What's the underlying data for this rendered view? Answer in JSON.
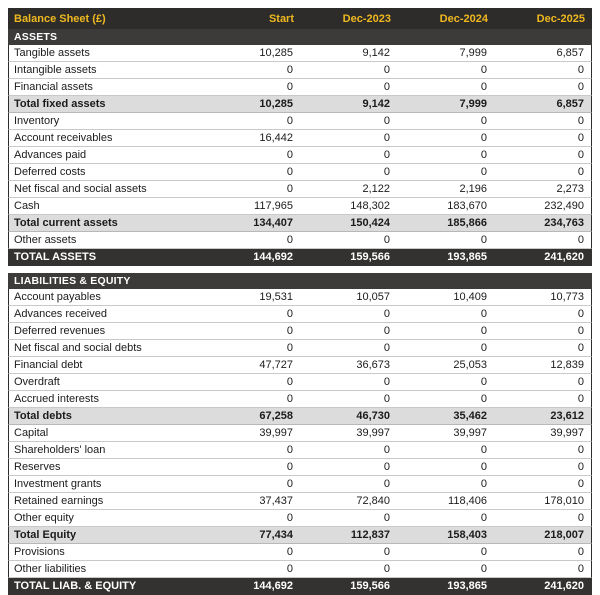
{
  "chart_data": {
    "type": "table",
    "title": "Balance Sheet (£)",
    "columns": [
      "Start",
      "Dec-2023",
      "Dec-2024",
      "Dec-2025"
    ],
    "sections": [
      {
        "header": "ASSETS",
        "rows": [
          {
            "label": "Tangible assets",
            "style": "normal",
            "values": [
              "10,285",
              "9,142",
              "7,999",
              "6,857"
            ]
          },
          {
            "label": "Intangible assets",
            "style": "normal",
            "values": [
              "0",
              "0",
              "0",
              "0"
            ]
          },
          {
            "label": "Financial assets",
            "style": "normal",
            "values": [
              "0",
              "0",
              "0",
              "0"
            ]
          },
          {
            "label": "Total fixed assets",
            "style": "subtotal",
            "values": [
              "10,285",
              "9,142",
              "7,999",
              "6,857"
            ]
          },
          {
            "label": "Inventory",
            "style": "normal",
            "values": [
              "0",
              "0",
              "0",
              "0"
            ]
          },
          {
            "label": "Account receivables",
            "style": "normal",
            "values": [
              "16,442",
              "0",
              "0",
              "0"
            ]
          },
          {
            "label": "Advances paid",
            "style": "normal",
            "values": [
              "0",
              "0",
              "0",
              "0"
            ]
          },
          {
            "label": "Deferred costs",
            "style": "normal",
            "values": [
              "0",
              "0",
              "0",
              "0"
            ]
          },
          {
            "label": "Net fiscal and social assets",
            "style": "normal",
            "values": [
              "0",
              "2,122",
              "2,196",
              "2,273"
            ]
          },
          {
            "label": "Cash",
            "style": "normal",
            "values": [
              "117,965",
              "148,302",
              "183,670",
              "232,490"
            ]
          },
          {
            "label": "Total current assets",
            "style": "subtotal",
            "values": [
              "134,407",
              "150,424",
              "185,866",
              "234,763"
            ]
          },
          {
            "label": "Other assets",
            "style": "normal",
            "values": [
              "0",
              "0",
              "0",
              "0"
            ]
          },
          {
            "label": "TOTAL ASSETS",
            "style": "grand_total",
            "values": [
              "144,692",
              "159,566",
              "193,865",
              "241,620"
            ]
          }
        ]
      },
      {
        "header": "LIABILITIES & EQUITY",
        "rows": [
          {
            "label": "Account payables",
            "style": "normal",
            "values": [
              "19,531",
              "10,057",
              "10,409",
              "10,773"
            ]
          },
          {
            "label": "Advances received",
            "style": "normal",
            "values": [
              "0",
              "0",
              "0",
              "0"
            ]
          },
          {
            "label": "Deferred revenues",
            "style": "normal",
            "values": [
              "0",
              "0",
              "0",
              "0"
            ]
          },
          {
            "label": "Net fiscal and social debts",
            "style": "normal",
            "values": [
              "0",
              "0",
              "0",
              "0"
            ]
          },
          {
            "label": "Financial debt",
            "style": "normal",
            "values": [
              "47,727",
              "36,673",
              "25,053",
              "12,839"
            ]
          },
          {
            "label": "Overdraft",
            "style": "normal",
            "values": [
              "0",
              "0",
              "0",
              "0"
            ]
          },
          {
            "label": "Accrued interests",
            "style": "normal",
            "values": [
              "0",
              "0",
              "0",
              "0"
            ]
          },
          {
            "label": "Total debts",
            "style": "subtotal",
            "values": [
              "67,258",
              "46,730",
              "35,462",
              "23,612"
            ]
          },
          {
            "label": "Capital",
            "style": "normal",
            "values": [
              "39,997",
              "39,997",
              "39,997",
              "39,997"
            ]
          },
          {
            "label": "Shareholders' loan",
            "style": "normal",
            "values": [
              "0",
              "0",
              "0",
              "0"
            ]
          },
          {
            "label": "Reserves",
            "style": "normal",
            "values": [
              "0",
              "0",
              "0",
              "0"
            ]
          },
          {
            "label": "Investment grants",
            "style": "normal",
            "values": [
              "0",
              "0",
              "0",
              "0"
            ]
          },
          {
            "label": "Retained earnings",
            "style": "normal",
            "values": [
              "37,437",
              "72,840",
              "118,406",
              "178,010"
            ]
          },
          {
            "label": "Other equity",
            "style": "normal",
            "values": [
              "0",
              "0",
              "0",
              "0"
            ]
          },
          {
            "label": "Total Equity",
            "style": "subtotal",
            "values": [
              "77,434",
              "112,837",
              "158,403",
              "218,007"
            ]
          },
          {
            "label": "Provisions",
            "style": "normal",
            "values": [
              "0",
              "0",
              "0",
              "0"
            ]
          },
          {
            "label": "Other liabilities",
            "style": "normal",
            "values": [
              "0",
              "0",
              "0",
              "0"
            ]
          },
          {
            "label": "TOTAL LIAB. & EQUITY",
            "style": "grand_total",
            "values": [
              "144,692",
              "159,566",
              "193,865",
              "241,620"
            ]
          }
        ]
      }
    ]
  },
  "colors": {
    "header_bg": "#2d2c2b",
    "header_text": "#efb81f",
    "section_header_bg": "#3c3b3a",
    "subtotal_row_bg": "#dcdcdc",
    "grand_total_bg": "#333231",
    "row_border": "#c9c9c9"
  }
}
